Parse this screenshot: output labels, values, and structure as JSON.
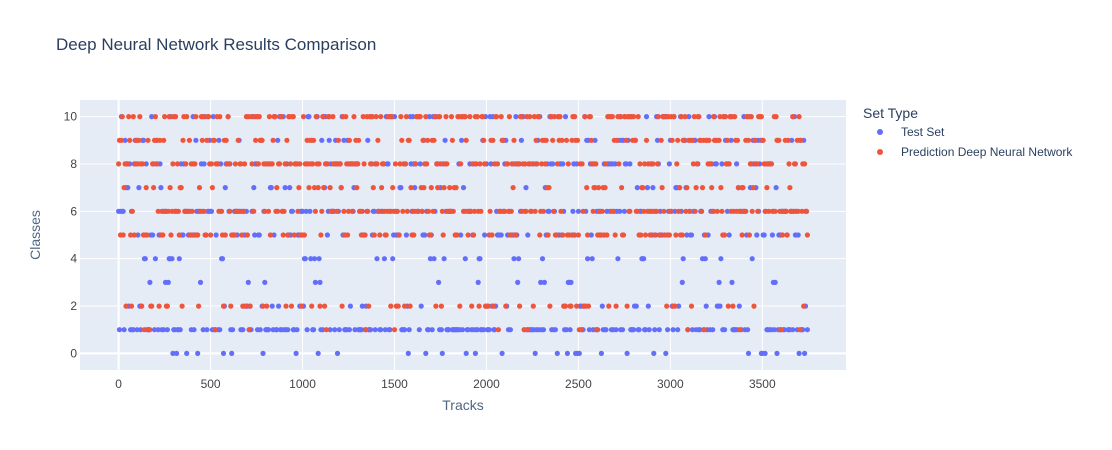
{
  "chart_data": {
    "type": "scatter",
    "title": "Deep Neural Network Results Comparison",
    "xlabel": "Tracks",
    "ylabel": "Classes",
    "xlim": [
      -210,
      3955
    ],
    "ylim": [
      -0.7,
      10.7
    ],
    "x_ticks": [
      0,
      500,
      1000,
      1500,
      2000,
      2500,
      3000,
      3500
    ],
    "x_tick_labels": [
      "0",
      "500",
      "1000",
      "1500",
      "2000",
      "2500",
      "3000",
      "3500"
    ],
    "y_ticks": [
      0,
      2,
      4,
      6,
      8,
      10
    ],
    "y_tick_labels": [
      "0",
      "2",
      "4",
      "6",
      "8",
      "10"
    ],
    "grid": true,
    "legend_position": "right",
    "legend_title": "Set Type",
    "n_points": 3750,
    "series": [
      {
        "name": "Test Set",
        "color": "#636efa",
        "class_values": [
          0,
          1,
          2,
          3,
          4,
          5,
          6,
          7,
          8,
          9,
          10
        ],
        "class_weights": [
          0.04,
          0.28,
          0.05,
          0.03,
          0.04,
          0.1,
          0.16,
          0.04,
          0.12,
          0.06,
          0.08
        ]
      },
      {
        "name": "Prediction Deep Neural Network",
        "color": "#ef553b",
        "class_values": [
          1,
          2,
          5,
          6,
          7,
          8,
          9,
          10
        ],
        "class_weights": [
          0.02,
          0.07,
          0.14,
          0.2,
          0.06,
          0.18,
          0.13,
          0.2
        ]
      }
    ]
  }
}
